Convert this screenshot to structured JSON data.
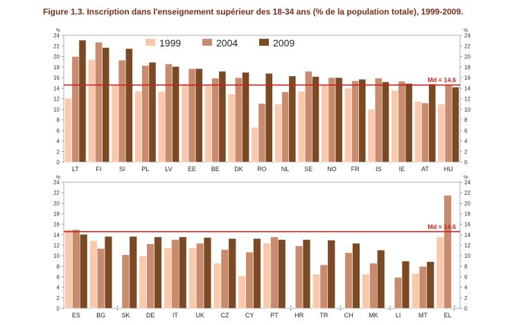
{
  "title": "Figure 1.3. Inscription dans l'enseignement supérieur des 18-34 ans (% de la population totale), 1999-2009.",
  "colors": {
    "1999": "#f9c9ae",
    "2004": "#c88b6d",
    "2009": "#7b4a25",
    "median_line": "#cc1f1f",
    "title": "#7a2e1a"
  },
  "chart_data": [
    {
      "type": "bar",
      "categories": [
        "LT",
        "FI",
        "SI",
        "PL",
        "LV",
        "EE",
        "BE",
        "DK",
        "RO",
        "NL",
        "SE",
        "NO",
        "FR",
        "IS",
        "IE",
        "AT",
        "HU"
      ],
      "series": [
        {
          "name": "1999",
          "values": [
            12.1,
            19.4,
            14.5,
            13.5,
            13.4,
            14.8,
            14.5,
            12.9,
            6.6,
            11.0,
            13.4,
            14.5,
            14.0,
            10.0,
            13.6,
            11.5,
            11.0
          ]
        },
        {
          "name": "2004",
          "values": [
            20.0,
            22.7,
            19.3,
            18.3,
            18.6,
            17.7,
            15.9,
            16.0,
            11.1,
            13.3,
            17.2,
            16.0,
            15.4,
            15.9,
            15.3,
            11.2,
            14.7
          ]
        },
        {
          "name": "2009",
          "values": [
            23.1,
            21.7,
            21.5,
            18.9,
            18.1,
            17.7,
            17.2,
            17.0,
            16.8,
            16.3,
            16.2,
            16.0,
            15.7,
            15.2,
            14.9,
            14.8,
            14.2
          ]
        }
      ],
      "ylim": [
        0,
        24
      ],
      "yticks": [
        0,
        2,
        4,
        6,
        8,
        10,
        12,
        14,
        16,
        18,
        20,
        22,
        24
      ],
      "yunit": "%",
      "median": 14.6,
      "median_label": "Md = 14.6",
      "missing_markers": [],
      "legend": [
        "1999",
        "2004",
        "2009"
      ],
      "legend_position": "top-center",
      "grid": false
    },
    {
      "type": "bar",
      "categories": [
        "ES",
        "BG",
        "SK",
        "DE",
        "IT",
        "UK",
        "CZ",
        "CY",
        "PT",
        "HR",
        "TR",
        "CH",
        "MK",
        "LI",
        "MT",
        "EL"
      ],
      "series": [
        {
          "name": "1999",
          "values": [
            15.0,
            12.9,
            null,
            10.0,
            11.5,
            11.5,
            8.6,
            6.2,
            12.4,
            null,
            6.5,
            null,
            6.5,
            null,
            6.6,
            13.6
          ]
        },
        {
          "name": "2004",
          "values": [
            15.0,
            11.4,
            10.2,
            12.3,
            13.1,
            12.4,
            11.2,
            10.7,
            13.6,
            11.9,
            8.3,
            10.6,
            8.6,
            5.9,
            8.0,
            21.5
          ]
        },
        {
          "name": "2009",
          "values": [
            14.1,
            13.7,
            13.7,
            13.6,
            13.6,
            13.5,
            13.3,
            13.3,
            13.1,
            13.1,
            13.0,
            12.4,
            11.1,
            9.0,
            8.9,
            null
          ]
        }
      ],
      "ylim": [
        0,
        24
      ],
      "yticks": [
        0,
        2,
        4,
        6,
        8,
        10,
        12,
        14,
        16,
        18,
        20,
        22,
        24
      ],
      "yunit": "%",
      "median": 14.6,
      "median_label": "Md = 14.6",
      "missing_markers": [
        {
          "category": "SK",
          "series": "1999",
          "symbol": "⠅"
        },
        {
          "category": "HR",
          "series": "1999",
          "symbol": "⠅"
        },
        {
          "category": "CH",
          "series": "1999",
          "symbol": "⠅"
        },
        {
          "category": "LI",
          "series": "1999",
          "symbol": "⠅"
        },
        {
          "category": "EL",
          "series": "2009",
          "symbol": "⠅"
        }
      ],
      "grid": false
    }
  ]
}
